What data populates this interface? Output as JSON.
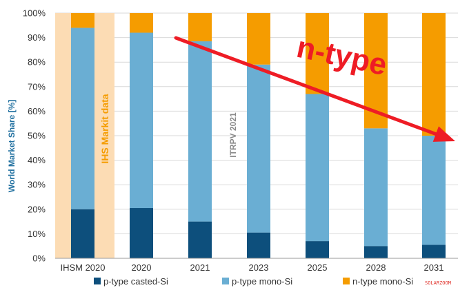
{
  "chart_data": {
    "type": "bar",
    "stacked": true,
    "ylabel": "World Market Share [%]",
    "ylim": [
      0,
      100
    ],
    "yticks": [
      "0%",
      "10%",
      "20%",
      "30%",
      "40%",
      "50%",
      "60%",
      "70%",
      "80%",
      "90%",
      "100%"
    ],
    "categories": [
      "IHSM 2020",
      "2020",
      "2021",
      "2023",
      "2025",
      "2028",
      "2031"
    ],
    "series": [
      {
        "name": "p-type casted-Si",
        "color": "#0d4f7c",
        "values": [
          20,
          20.5,
          15,
          10.5,
          7,
          5,
          5.5
        ]
      },
      {
        "name": "p-type mono-Si",
        "color": "#6aaed3",
        "values": [
          74,
          71.5,
          73.5,
          68.5,
          60,
          48,
          44.5
        ]
      },
      {
        "name": "n-type mono-Si",
        "color": "#f59c00",
        "values": [
          6,
          8,
          11.5,
          21,
          33,
          47,
          50
        ]
      }
    ],
    "grid": true,
    "legend": "bottom",
    "annotations": {
      "ihs": "IHS Markit data",
      "itrpv": "ITRPV 2021",
      "trend": "n-type",
      "watermark": "SOLARZOOM"
    },
    "colors": {
      "highlight": "#fcdcb4",
      "arrow": "#ee1c25",
      "ihs_text": "#f59c00"
    }
  }
}
